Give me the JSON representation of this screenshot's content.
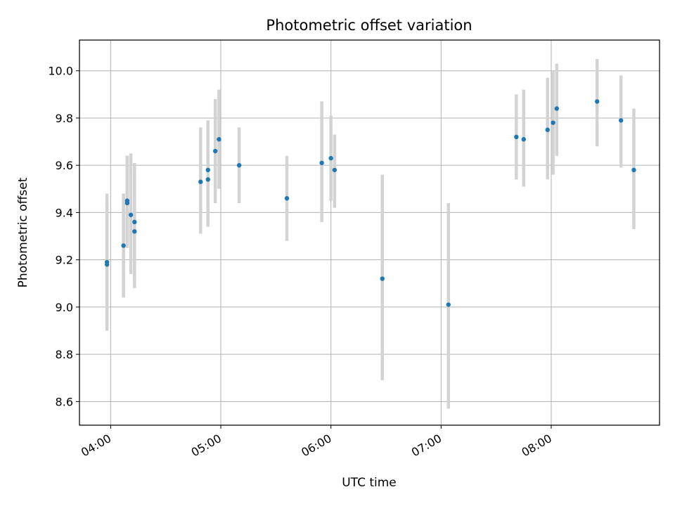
{
  "chart_data": {
    "type": "scatter",
    "title": "Photometric offset variation",
    "xlabel": "UTC time",
    "ylabel": "Photometric offset",
    "x_axis": "time",
    "xlim": [
      "03:43",
      "08:59"
    ],
    "ylim": [
      8.5,
      10.13
    ],
    "xticks": [
      "04:00",
      "05:00",
      "06:00",
      "07:00",
      "08:00"
    ],
    "yticks": [
      8.6,
      8.8,
      9.0,
      9.2,
      9.4,
      9.6,
      9.8,
      10.0
    ],
    "grid": true,
    "point_color": "#1f77b4",
    "errorbar_color": "#d3d3d3",
    "points": [
      {
        "x": "03:58",
        "y": 9.19,
        "err_low": 8.9,
        "err_high": 9.48
      },
      {
        "x": "03:58",
        "y": 9.18,
        "err_low": 8.9,
        "err_high": 9.45
      },
      {
        "x": "04:07",
        "y": 9.26,
        "err_low": 9.04,
        "err_high": 9.48
      },
      {
        "x": "04:09",
        "y": 9.45,
        "err_low": 9.28,
        "err_high": 9.64
      },
      {
        "x": "04:09",
        "y": 9.44,
        "err_low": 9.25,
        "err_high": 9.64
      },
      {
        "x": "04:11",
        "y": 9.39,
        "err_low": 9.14,
        "err_high": 9.65
      },
      {
        "x": "04:13",
        "y": 9.36,
        "err_low": 9.1,
        "err_high": 9.61
      },
      {
        "x": "04:13",
        "y": 9.32,
        "err_low": 9.08,
        "err_high": 9.57
      },
      {
        "x": "04:49",
        "y": 9.53,
        "err_low": 9.31,
        "err_high": 9.76
      },
      {
        "x": "04:53",
        "y": 9.58,
        "err_low": 9.38,
        "err_high": 9.79
      },
      {
        "x": "04:53",
        "y": 9.54,
        "err_low": 9.34,
        "err_high": 9.75
      },
      {
        "x": "04:57",
        "y": 9.66,
        "err_low": 9.44,
        "err_high": 9.88
      },
      {
        "x": "04:59",
        "y": 9.71,
        "err_low": 9.5,
        "err_high": 9.92
      },
      {
        "x": "05:10",
        "y": 9.6,
        "err_low": 9.44,
        "err_high": 9.76
      },
      {
        "x": "05:36",
        "y": 9.46,
        "err_low": 9.28,
        "err_high": 9.64
      },
      {
        "x": "05:55",
        "y": 9.61,
        "err_low": 9.36,
        "err_high": 9.87
      },
      {
        "x": "06:00",
        "y": 9.63,
        "err_low": 9.45,
        "err_high": 9.81
      },
      {
        "x": "06:02",
        "y": 9.58,
        "err_low": 9.42,
        "err_high": 9.73
      },
      {
        "x": "06:28",
        "y": 9.12,
        "err_low": 8.69,
        "err_high": 9.56
      },
      {
        "x": "07:04",
        "y": 9.01,
        "err_low": 8.57,
        "err_high": 9.44
      },
      {
        "x": "07:41",
        "y": 9.72,
        "err_low": 9.54,
        "err_high": 9.9
      },
      {
        "x": "07:45",
        "y": 9.71,
        "err_low": 9.51,
        "err_high": 9.92
      },
      {
        "x": "07:58",
        "y": 9.75,
        "err_low": 9.54,
        "err_high": 9.97
      },
      {
        "x": "08:01",
        "y": 9.78,
        "err_low": 9.56,
        "err_high": 10.0
      },
      {
        "x": "08:03",
        "y": 9.84,
        "err_low": 9.64,
        "err_high": 10.03
      },
      {
        "x": "08:25",
        "y": 9.87,
        "err_low": 9.68,
        "err_high": 10.05
      },
      {
        "x": "08:38",
        "y": 9.79,
        "err_low": 9.59,
        "err_high": 9.98
      },
      {
        "x": "08:45",
        "y": 9.58,
        "err_low": 9.33,
        "err_high": 9.84
      }
    ]
  }
}
